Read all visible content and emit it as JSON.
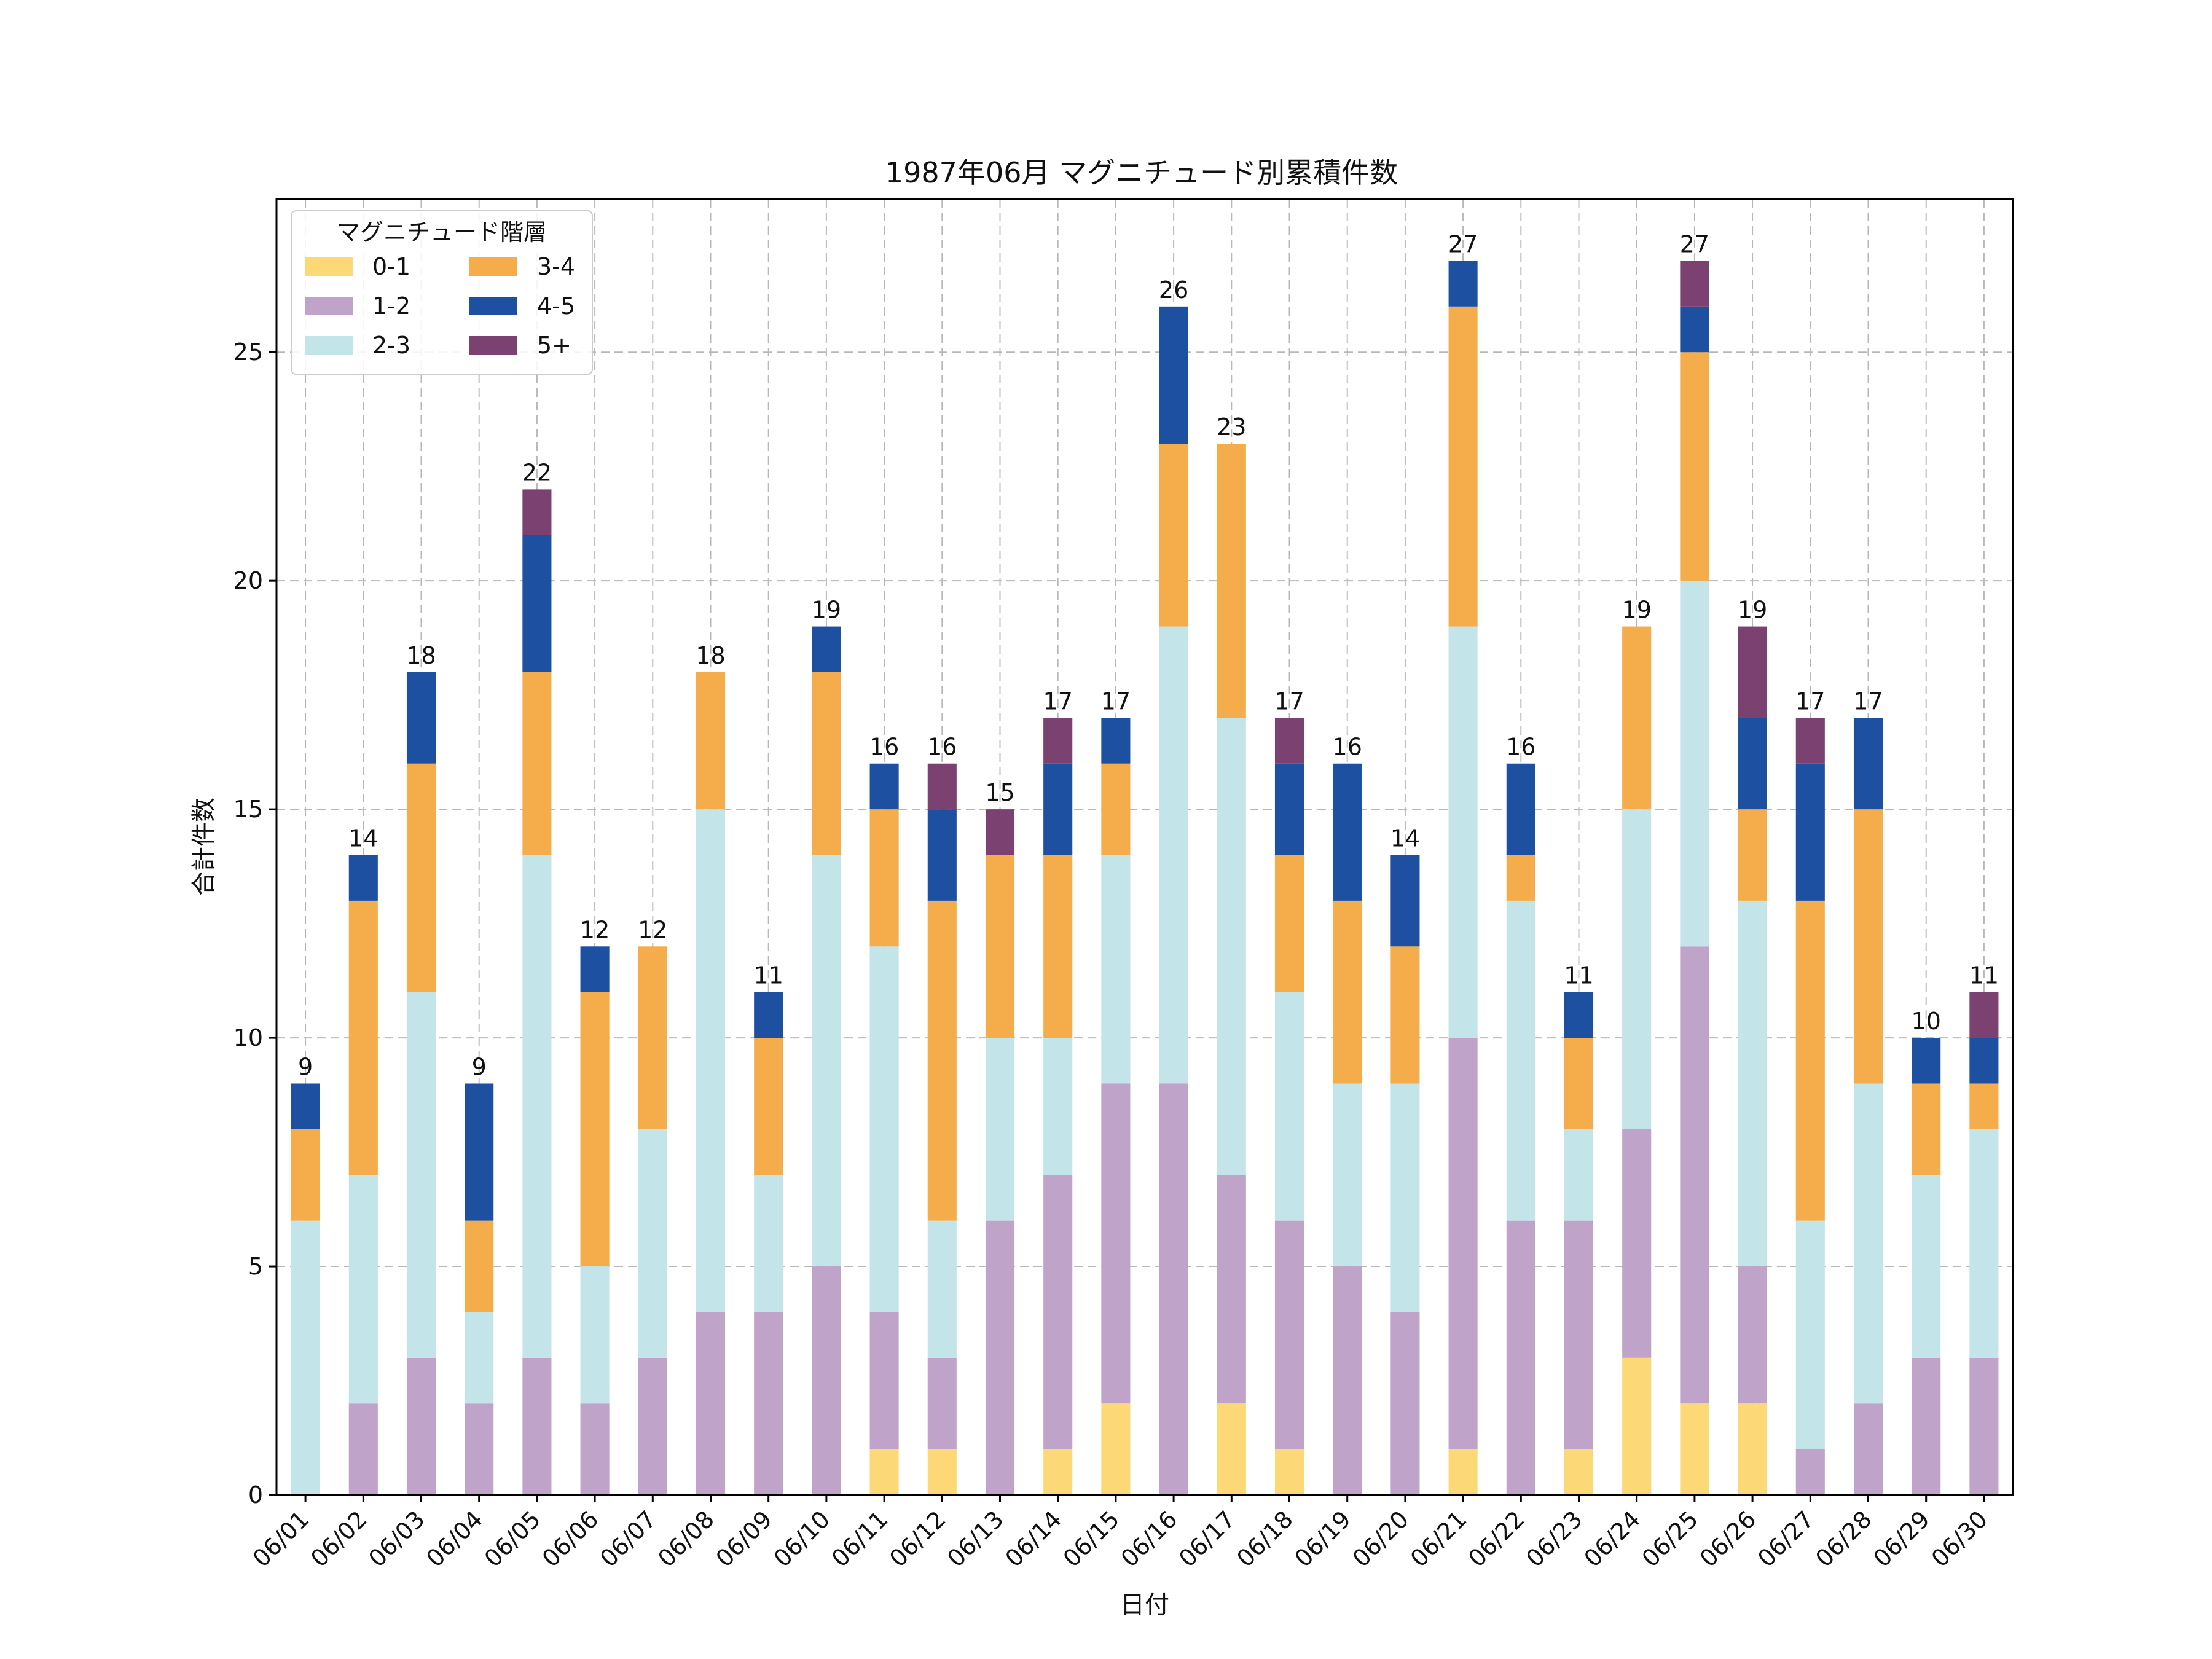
{
  "chart_data": {
    "type": "bar",
    "stacked": true,
    "title": "1987年06月 マグニチュード別累積件数",
    "xlabel": "日付",
    "ylabel": "合計件数",
    "ylim": [
      0,
      28.35
    ],
    "yticks": [
      0,
      5,
      10,
      15,
      20,
      25
    ],
    "grid": true,
    "legend": {
      "title": "マグニチュード階層",
      "location": "top-left",
      "columns": 2
    },
    "categories": [
      "06/01",
      "06/02",
      "06/03",
      "06/04",
      "06/05",
      "06/06",
      "06/07",
      "06/08",
      "06/09",
      "06/10",
      "06/11",
      "06/12",
      "06/13",
      "06/14",
      "06/15",
      "06/16",
      "06/17",
      "06/18",
      "06/19",
      "06/20",
      "06/21",
      "06/22",
      "06/23",
      "06/24",
      "06/25",
      "06/26",
      "06/27",
      "06/28",
      "06/29",
      "06/30"
    ],
    "series": [
      {
        "name": "0-1",
        "color": "#fcd877",
        "values": [
          0,
          0,
          0,
          0,
          0,
          0,
          0,
          0,
          0,
          0,
          1,
          1,
          0,
          1,
          2,
          0,
          2,
          1,
          0,
          0,
          1,
          0,
          1,
          3,
          2,
          2,
          0,
          0,
          0,
          0
        ]
      },
      {
        "name": "1-2",
        "color": "#c0a3c9",
        "values": [
          0,
          2,
          3,
          2,
          3,
          2,
          3,
          4,
          4,
          5,
          3,
          2,
          6,
          6,
          7,
          9,
          5,
          5,
          5,
          4,
          9,
          6,
          5,
          5,
          10,
          3,
          1,
          2,
          3,
          3
        ]
      },
      {
        "name": "2-3",
        "color": "#c3e4e8",
        "values": [
          6,
          5,
          8,
          2,
          11,
          3,
          5,
          11,
          3,
          9,
          8,
          3,
          4,
          3,
          5,
          10,
          10,
          5,
          4,
          5,
          9,
          7,
          2,
          7,
          8,
          8,
          5,
          7,
          4,
          5
        ]
      },
      {
        "name": "3-4",
        "color": "#f4ad4a",
        "values": [
          2,
          6,
          5,
          2,
          4,
          6,
          4,
          3,
          3,
          4,
          3,
          7,
          4,
          4,
          2,
          4,
          6,
          3,
          4,
          3,
          7,
          1,
          2,
          4,
          5,
          2,
          7,
          6,
          2,
          1
        ]
      },
      {
        "name": "4-5",
        "color": "#1e50a2",
        "values": [
          1,
          1,
          2,
          3,
          3,
          1,
          0,
          0,
          1,
          1,
          1,
          2,
          0,
          2,
          1,
          3,
          0,
          2,
          3,
          2,
          1,
          2,
          1,
          0,
          1,
          2,
          3,
          2,
          1,
          1
        ]
      },
      {
        "name": "5+",
        "color": "#7a4171",
        "values": [
          0,
          0,
          0,
          0,
          1,
          0,
          0,
          0,
          0,
          0,
          0,
          1,
          1,
          1,
          0,
          0,
          0,
          1,
          0,
          0,
          0,
          0,
          0,
          0,
          1,
          2,
          1,
          0,
          0,
          1
        ]
      }
    ],
    "totals": [
      9,
      14,
      18,
      9,
      22,
      12,
      12,
      18,
      11,
      19,
      16,
      16,
      15,
      17,
      17,
      26,
      23,
      17,
      16,
      14,
      27,
      16,
      11,
      19,
      27,
      19,
      17,
      17,
      10,
      11
    ]
  }
}
